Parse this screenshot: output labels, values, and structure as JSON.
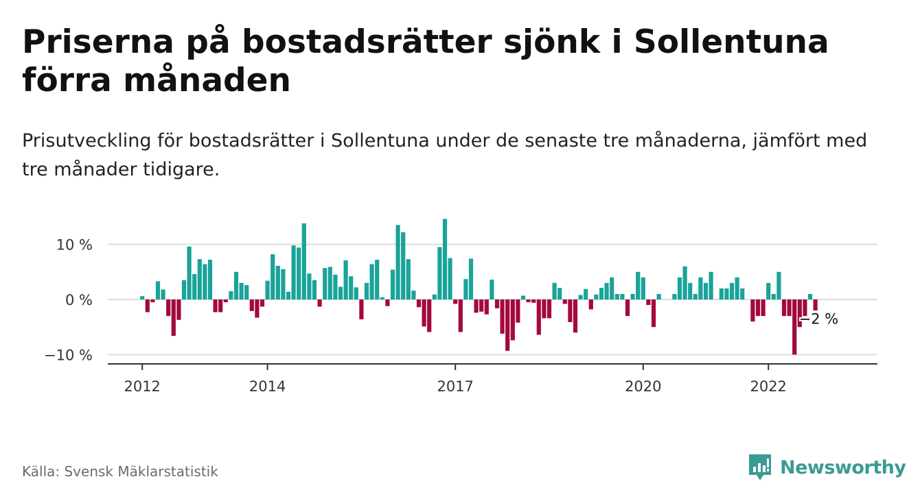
{
  "header": {
    "title": "Priserna på bostadsrätter sjönk i Sollentuna förra månaden",
    "subtitle": "Prisutveckling för bostadsrätter i Sollentuna under de senaste tre månaderna, jämfört med tre månader tidigare."
  },
  "footer": {
    "source": "Källa: Svensk Mäklarstatistik",
    "brand": "Newsworthy"
  },
  "colors": {
    "positive": "#1aa399",
    "negative": "#a3083f",
    "brand": "#3a9b94",
    "grid": "#dcdcdc"
  },
  "chart_data": {
    "type": "bar",
    "start": "2012-01",
    "ylim": [
      -11,
      15
    ],
    "yticks": [
      {
        "value": 10,
        "label": "10 %"
      },
      {
        "value": 0,
        "label": "0 %"
      },
      {
        "value": -10,
        "label": "−10 %"
      }
    ],
    "xticks": [
      {
        "label": "2012",
        "month": "2012-01"
      },
      {
        "label": "2014",
        "month": "2014-01"
      },
      {
        "label": "2017",
        "month": "2017-01"
      },
      {
        "label": "2020",
        "month": "2020-01"
      },
      {
        "label": "2022",
        "month": "2022-01"
      }
    ],
    "values": [
      0.6,
      -2.3,
      -0.5,
      3.3,
      1.8,
      -3.0,
      -6.6,
      -3.7,
      3.5,
      9.6,
      4.6,
      7.3,
      6.4,
      7.2,
      -2.3,
      -2.3,
      -0.5,
      1.5,
      5.0,
      3.0,
      2.6,
      -2.1,
      -3.3,
      -1.3,
      3.4,
      8.2,
      6.1,
      5.5,
      1.4,
      9.8,
      9.4,
      13.8,
      4.7,
      3.5,
      -1.3,
      5.7,
      5.9,
      4.5,
      2.3,
      7.1,
      4.2,
      2.2,
      -3.6,
      3.0,
      6.4,
      7.2,
      0.4,
      -1.2,
      5.4,
      13.5,
      12.2,
      7.3,
      1.6,
      -1.4,
      -4.9,
      -5.9,
      0.9,
      9.5,
      14.6,
      7.5,
      -0.8,
      -5.9,
      3.7,
      7.4,
      -2.4,
      -2.2,
      -2.7,
      3.6,
      -1.6,
      -6.2,
      -9.3,
      -7.4,
      -4.2,
      0.7,
      -0.5,
      -0.6,
      -6.4,
      -3.4,
      -3.4,
      3.0,
      2.1,
      -0.8,
      -4.1,
      -6.0,
      0.8,
      1.9,
      -1.8,
      0.9,
      2.1,
      3.0,
      4.0,
      1.0,
      1.0,
      -3.0,
      1.0,
      5.0,
      4.0,
      -1.0,
      -5.0,
      1.0,
      0.0,
      0.0,
      1.0,
      4.0,
      6.0,
      3.0,
      1.0,
      4.0,
      3.0,
      5.0,
      0.0,
      2.0,
      2.0,
      3.0,
      4.0,
      2.0,
      0.0,
      -4.0,
      -3.0,
      -3.0,
      3.0,
      1.0,
      5.0,
      -3.0,
      -3.0,
      -10.0,
      -5.0,
      -3.0,
      1.0,
      -2.0
    ],
    "last_label": "−2 %"
  }
}
